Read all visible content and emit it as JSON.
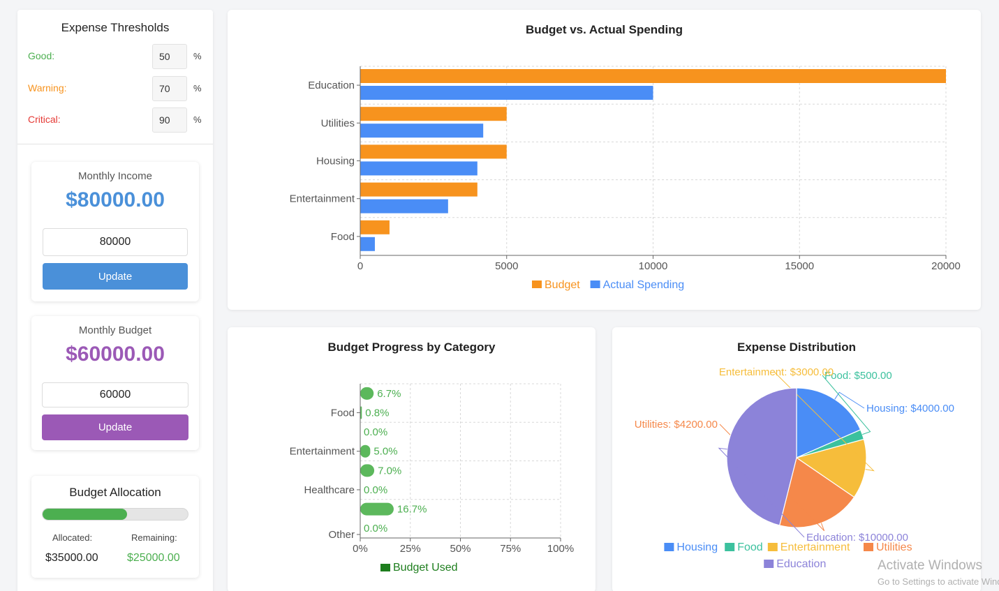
{
  "thresholds": {
    "title": "Expense Thresholds",
    "good": {
      "label": "Good:",
      "value": "50",
      "unit": "%",
      "color": "#4caf50"
    },
    "warning": {
      "label": "Warning:",
      "value": "70",
      "unit": "%",
      "color": "#f7931e"
    },
    "critical": {
      "label": "Critical:",
      "value": "90",
      "unit": "%",
      "color": "#e53935"
    }
  },
  "income": {
    "label": "Monthly Income",
    "amount": "$80000.00",
    "input_value": "80000",
    "button": "Update",
    "color": "#4a90d9"
  },
  "budget": {
    "label": "Monthly Budget",
    "amount": "$60000.00",
    "input_value": "60000",
    "button": "Update",
    "color": "#9b59b6"
  },
  "allocation": {
    "title": "Budget Allocation",
    "progress": 0.583,
    "allocated_label": "Allocated:",
    "allocated_value": "$35000.00",
    "remaining_label": "Remaining:",
    "remaining_value": "$25000.00",
    "remaining_color": "#4caf50"
  },
  "charts": {
    "budget_vs_actual": {
      "title": "Budget vs. Actual Spending"
    },
    "progress": {
      "title": "Budget Progress by Category"
    },
    "distribution": {
      "title": "Expense Distribution"
    }
  },
  "chart_data": [
    {
      "type": "bar",
      "orientation": "horizontal",
      "title": "Budget vs. Actual Spending",
      "categories": [
        "Education",
        "Utilities",
        "Housing",
        "Entertainment",
        "Food"
      ],
      "series": [
        {
          "name": "Budget",
          "values": [
            20000,
            5000,
            5000,
            4000,
            1000
          ],
          "color": "#f7931e"
        },
        {
          "name": "Actual Spending",
          "values": [
            10000,
            4200,
            4000,
            3000,
            500
          ],
          "color": "#4a8df6"
        }
      ],
      "xlim": [
        0,
        20000
      ],
      "xticks": [
        "0",
        "5000",
        "10000",
        "15000",
        "20000"
      ],
      "grid": true,
      "legend": "bottom"
    },
    {
      "type": "bar",
      "orientation": "horizontal",
      "title": "Budget Progress by Category",
      "category_labels": [
        "Food",
        "Entertainment",
        "Healthcare",
        "Other"
      ],
      "series": [
        {
          "name": "Budget Used",
          "values": [
            6.7,
            0.8,
            0.0,
            5.0,
            7.0,
            0.0,
            16.7,
            0.0
          ],
          "labels": [
            "6.7%",
            "0.8%",
            "0.0%",
            "5.0%",
            "7.0%",
            "0.0%",
            "16.7%",
            "0.0%"
          ],
          "color": "#5cb85c",
          "legend_color": "#1e7e1e"
        }
      ],
      "xlim": [
        0,
        100
      ],
      "xticks": [
        "0%",
        "25%",
        "50%",
        "75%",
        "100%"
      ],
      "grid": true,
      "legend": "bottom"
    },
    {
      "type": "pie",
      "title": "Expense Distribution",
      "slices": [
        {
          "name": "Housing",
          "value": 4000,
          "label": "Housing: $4000.00",
          "color": "#4a8df6"
        },
        {
          "name": "Food",
          "value": 500,
          "label": "Food: $500.00",
          "color": "#3cc19e"
        },
        {
          "name": "Entertainment",
          "value": 3000,
          "label": "Entertainment: $3000.00",
          "color": "#f6bd3b"
        },
        {
          "name": "Utilities",
          "value": 4200,
          "label": "Utilities: $4200.00",
          "color": "#f5884a"
        },
        {
          "name": "Education",
          "value": 10000,
          "label": "Education: $10000.00",
          "color": "#8c83d9"
        }
      ],
      "legend": "bottom"
    }
  ],
  "watermark": {
    "line1": "Activate Windows",
    "line2": "Go to Settings to activate Windows."
  }
}
